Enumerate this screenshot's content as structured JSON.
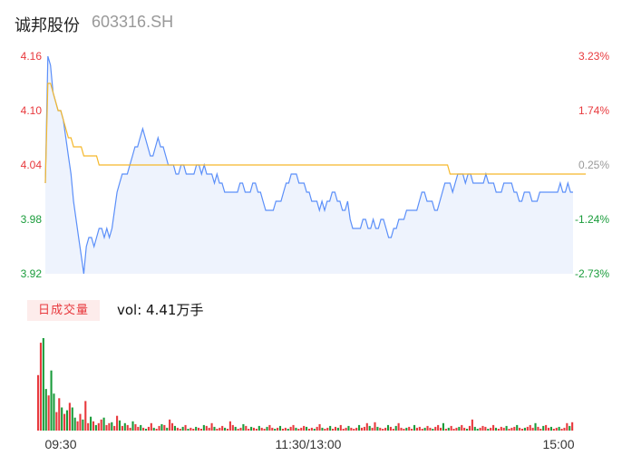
{
  "header": {
    "name": "诚邦股份",
    "code": "603316.SH"
  },
  "chart_data": [
    {
      "type": "line",
      "title": "",
      "price_ticks": [
        "4.16",
        "4.10",
        "4.04",
        "3.98",
        "3.92"
      ],
      "pct_ticks": [
        "3.23%",
        "1.74%",
        "0.25%",
        "-1.24%",
        "-2.73%"
      ],
      "ylim": [
        3.92,
        4.16
      ],
      "prev_close": 4.03,
      "colors": {
        "up": "#e8393d",
        "down": "#1a9c3b",
        "neutral": "#999999",
        "price_line": "#5b8ff9",
        "avg_line": "#f5b82a"
      },
      "series": [
        {
          "values": [
            4.02,
            4.16,
            4.15,
            4.12,
            4.11,
            4.1,
            4.1,
            4.09,
            4.07,
            4.05,
            4.03,
            4.0,
            3.98,
            3.96,
            3.94,
            3.92,
            3.95,
            3.96,
            3.96,
            3.95,
            3.96,
            3.97,
            3.97,
            3.96,
            3.97,
            3.96,
            3.97,
            3.99,
            4.01,
            4.02,
            4.03,
            4.03,
            4.03,
            4.04,
            4.05,
            4.06,
            4.06,
            4.07,
            4.08,
            4.07,
            4.06,
            4.05,
            4.05,
            4.06,
            4.07,
            4.06,
            4.06,
            4.05,
            4.04,
            4.04,
            4.04,
            4.03,
            4.03,
            4.04,
            4.04,
            4.03,
            4.03,
            4.03,
            4.03,
            4.04,
            4.04,
            4.03,
            4.04,
            4.03,
            4.03,
            4.03,
            4.02,
            4.03,
            4.02,
            4.02,
            4.01,
            4.01,
            4.01,
            4.01,
            4.01,
            4.01,
            4.02,
            4.02,
            4.01,
            4.01,
            4.01,
            4.02,
            4.02,
            4.01,
            4.01,
            4.0,
            3.99,
            3.99,
            3.99,
            3.99,
            4.0,
            4.0,
            4.0,
            4.01,
            4.02,
            4.02,
            4.03,
            4.03,
            4.03,
            4.02,
            4.02,
            4.02,
            4.01,
            4.01,
            4.0,
            4.0,
            4.0,
            3.99,
            4.0,
            3.99,
            4.0,
            4.0,
            4.01,
            4.01,
            4.0,
            4.0,
            3.99,
            3.99,
            4.0,
            3.98,
            3.97,
            3.97,
            3.97,
            3.97,
            3.98,
            3.98,
            3.97,
            3.97,
            3.98,
            3.97,
            3.97,
            3.98,
            3.98,
            3.97,
            3.96,
            3.96,
            3.97,
            3.97,
            3.98,
            3.98,
            3.98,
            3.99,
            3.99,
            3.99,
            3.99,
            3.99,
            4.0,
            4.01,
            4.01,
            4.0,
            4.0,
            4.0,
            3.99,
            3.99,
            4.0,
            4.01,
            4.02,
            4.02,
            4.02,
            4.01,
            4.02,
            4.03,
            4.03,
            4.03,
            4.02,
            4.03,
            4.03,
            4.02,
            4.02,
            4.02,
            4.02,
            4.02,
            4.03,
            4.02,
            4.02,
            4.02,
            4.01,
            4.01,
            4.01,
            4.02,
            4.02,
            4.02,
            4.02,
            4.01,
            4.01,
            4.0,
            4.0,
            4.01,
            4.01,
            4.01,
            4.0,
            4.0,
            4.0,
            4.01,
            4.01,
            4.01,
            4.01,
            4.01,
            4.01,
            4.01,
            4.01,
            4.02,
            4.01,
            4.01,
            4.02,
            4.01,
            4.01
          ]
        },
        {
          "values": [
            4.02,
            4.13,
            4.13,
            4.12,
            4.11,
            4.1,
            4.1,
            4.09,
            4.08,
            4.07,
            4.07,
            4.06,
            4.06,
            4.06,
            4.06,
            4.05,
            4.05,
            4.05,
            4.05,
            4.05,
            4.05,
            4.04,
            4.04,
            4.04,
            4.04,
            4.04,
            4.04,
            4.04,
            4.04,
            4.04,
            4.04,
            4.04,
            4.04,
            4.04,
            4.04,
            4.04,
            4.04,
            4.04,
            4.04,
            4.04,
            4.04,
            4.04,
            4.04,
            4.04,
            4.04,
            4.04,
            4.04,
            4.04,
            4.04,
            4.04,
            4.04,
            4.04,
            4.04,
            4.04,
            4.04,
            4.04,
            4.04,
            4.04,
            4.04,
            4.04,
            4.04,
            4.04,
            4.04,
            4.04,
            4.04,
            4.04,
            4.04,
            4.04,
            4.04,
            4.04,
            4.04,
            4.04,
            4.04,
            4.04,
            4.04,
            4.04,
            4.04,
            4.04,
            4.04,
            4.04,
            4.04,
            4.04,
            4.04,
            4.04,
            4.04,
            4.04,
            4.04,
            4.04,
            4.04,
            4.04,
            4.04,
            4.04,
            4.04,
            4.04,
            4.04,
            4.04,
            4.04,
            4.04,
            4.04,
            4.04,
            4.04,
            4.04,
            4.04,
            4.04,
            4.04,
            4.04,
            4.04,
            4.04,
            4.04,
            4.04,
            4.04,
            4.04,
            4.04,
            4.04,
            4.04,
            4.04,
            4.04,
            4.04,
            4.04,
            4.04,
            4.04,
            4.04,
            4.04,
            4.04,
            4.04,
            4.04,
            4.04,
            4.04,
            4.04,
            4.04,
            4.04,
            4.04,
            4.04,
            4.04,
            4.04,
            4.04,
            4.04,
            4.04,
            4.04,
            4.04,
            4.04,
            4.04,
            4.04,
            4.04,
            4.04,
            4.04,
            4.04,
            4.04,
            4.04,
            4.04,
            4.04,
            4.04,
            4.04,
            4.04,
            4.04,
            4.04,
            4.04,
            4.04,
            4.03,
            4.03,
            4.03,
            4.03,
            4.03,
            4.03,
            4.03,
            4.03,
            4.03,
            4.03,
            4.03,
            4.03,
            4.03,
            4.03,
            4.03,
            4.03,
            4.03,
            4.03,
            4.03,
            4.03,
            4.03,
            4.03,
            4.03,
            4.03,
            4.03,
            4.03,
            4.03,
            4.03,
            4.03,
            4.03,
            4.03,
            4.03,
            4.03,
            4.03,
            4.03,
            4.03,
            4.03,
            4.03,
            4.03,
            4.03,
            4.03,
            4.03,
            4.03,
            4.03,
            4.03,
            4.03,
            4.03,
            4.03,
            4.03,
            4.03,
            4.03,
            4.03,
            4.03,
            4.03
          ]
        }
      ]
    },
    {
      "type": "bar",
      "title": "",
      "xticks": [
        "09:30",
        "11:30/13:00",
        "15:00"
      ],
      "badge": "日成交量",
      "volume_label": "vol: 4.41万手",
      "values": [
        60,
        95,
        100,
        45,
        38,
        65,
        40,
        20,
        35,
        25,
        18,
        22,
        30,
        25,
        14,
        10,
        18,
        12,
        32,
        8,
        15,
        10,
        6,
        8,
        12,
        14,
        6,
        8,
        9,
        5,
        16,
        11,
        5,
        8,
        6,
        3,
        10,
        7,
        4,
        6,
        3,
        2,
        4,
        8,
        3,
        2,
        5,
        7,
        6,
        3,
        12,
        8,
        5,
        3,
        2,
        4,
        6,
        2,
        3,
        2,
        4,
        3,
        2,
        6,
        5,
        3,
        8,
        4,
        2,
        3,
        5,
        3,
        2,
        10,
        6,
        4,
        2,
        3,
        7,
        5,
        2,
        4,
        3,
        2,
        5,
        3,
        2,
        4,
        6,
        3,
        2,
        3,
        5,
        2,
        3,
        2,
        4,
        6,
        3,
        2,
        3,
        5,
        4,
        2,
        3,
        2,
        4,
        7,
        3,
        2,
        3,
        5,
        2,
        4,
        3,
        6,
        2,
        3,
        5,
        3,
        2,
        3,
        6,
        3,
        4,
        8,
        5,
        3,
        9,
        4,
        3,
        2,
        3,
        6,
        4,
        2,
        5,
        8,
        3,
        2,
        3,
        4,
        2,
        6,
        3,
        4,
        2,
        3,
        5,
        3,
        2,
        4,
        6,
        3,
        8,
        2,
        3,
        5,
        2,
        3,
        4,
        6,
        3,
        2,
        5,
        12,
        4,
        2,
        3,
        5,
        4,
        2,
        3,
        6,
        3,
        2,
        4,
        3,
        5,
        2,
        3,
        4,
        6,
        3,
        2,
        3,
        4,
        6,
        3,
        8,
        4,
        2,
        5,
        6,
        3,
        4,
        2,
        3,
        4,
        2,
        3,
        8,
        5,
        9
      ],
      "colors": [
        1,
        1,
        2,
        2,
        1,
        2,
        2,
        1,
        1,
        2,
        1,
        2,
        1,
        2,
        2,
        1,
        1,
        2,
        1,
        1,
        2,
        1,
        2,
        1,
        1,
        2,
        1,
        1,
        2,
        1,
        1,
        2,
        1,
        2,
        1,
        1,
        2,
        1,
        1,
        2,
        1,
        2,
        1,
        1,
        2,
        1,
        1,
        2,
        1,
        2,
        1,
        1,
        2,
        1,
        1,
        2,
        1,
        2,
        1,
        1,
        2,
        1,
        1,
        2,
        1,
        1,
        1,
        2,
        1,
        1,
        1,
        2,
        1,
        1,
        1,
        2,
        1,
        1,
        2,
        1,
        1,
        2,
        1,
        1,
        2,
        1,
        1,
        2,
        1,
        1,
        2,
        1,
        2,
        1,
        1,
        2,
        1,
        1,
        2,
        1,
        1,
        1,
        2,
        1,
        1,
        2,
        1,
        1,
        2,
        1,
        1,
        2,
        1,
        1,
        2,
        1,
        1,
        1,
        2,
        1,
        1,
        1,
        2,
        1,
        1,
        1,
        2,
        1,
        1,
        2,
        1,
        1,
        1,
        2,
        1,
        1,
        2,
        1,
        1,
        1,
        2,
        1,
        1,
        2,
        1,
        1,
        1,
        2,
        1,
        1,
        2,
        1,
        1,
        1,
        2,
        1,
        2,
        1,
        1,
        1,
        2,
        1,
        1,
        2,
        1,
        1,
        2,
        2,
        1,
        1,
        1,
        2,
        1,
        1,
        2,
        1,
        1,
        1,
        2,
        1,
        1,
        1,
        2,
        1,
        1,
        2,
        1,
        1,
        1,
        2,
        1,
        1,
        2,
        1,
        1,
        2,
        1,
        1,
        2,
        1,
        1,
        1,
        2,
        1
      ]
    }
  ]
}
